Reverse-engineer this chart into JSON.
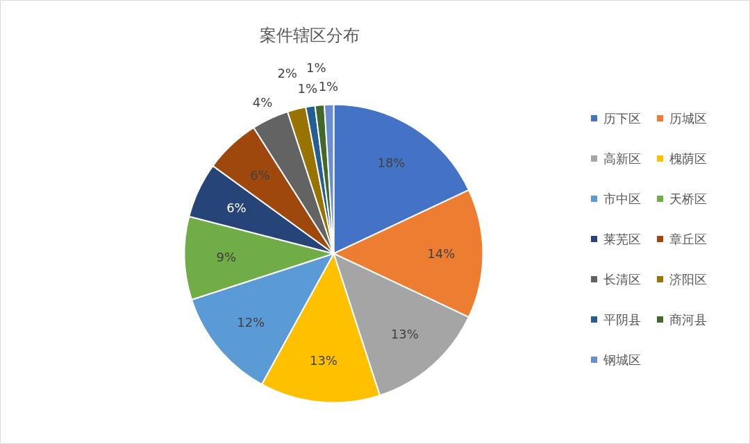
{
  "chart_data": {
    "type": "pie",
    "title": "案件辖区分布",
    "categories": [
      "历下区",
      "历城区",
      "高新区",
      "槐荫区",
      "市中区",
      "天桥区",
      "莱芜区",
      "章丘区",
      "长清区",
      "济阳区",
      "平阴县",
      "商河县",
      "钢城区"
    ],
    "values": [
      18,
      14,
      13,
      13,
      12,
      9,
      6,
      6,
      4,
      2,
      1,
      1,
      1
    ],
    "value_labels": [
      "18%",
      "14%",
      "13%",
      "13%",
      "12%",
      "9%",
      "6%",
      "6%",
      "4%",
      "2%",
      "1%",
      "1%",
      "1%"
    ],
    "colors": [
      "#4472c4",
      "#ed7d31",
      "#a5a5a5",
      "#ffc000",
      "#5b9bd5",
      "#70ad47",
      "#264478",
      "#9e480e",
      "#636363",
      "#997300",
      "#255e91",
      "#43682b",
      "#698ed0"
    ],
    "legend": "right"
  }
}
